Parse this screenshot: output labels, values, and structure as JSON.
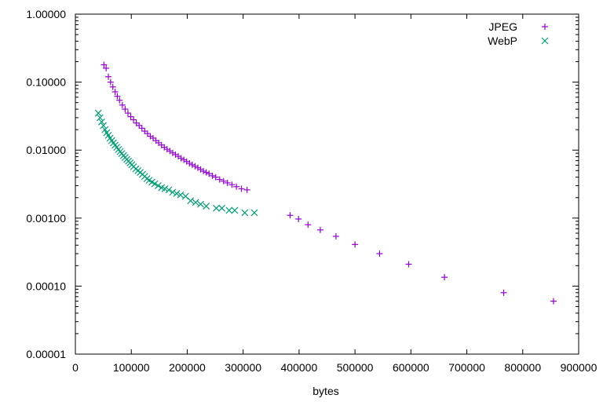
{
  "chart_data": {
    "type": "scatter",
    "title": "",
    "xlabel": "bytes",
    "ylabel": "",
    "xlim": [
      0,
      900000
    ],
    "ylim": [
      1e-05,
      1
    ],
    "yscale": "log",
    "xticks": [
      "0",
      "100000",
      "200000",
      "300000",
      "400000",
      "500000",
      "600000",
      "700000",
      "800000",
      "900000"
    ],
    "yticks": [
      "0.00001",
      "0.00010",
      "0.00100",
      "0.01000",
      "0.10000",
      "1.00000"
    ],
    "grid": false,
    "legend_position": "top-right",
    "series": [
      {
        "name": "JPEG",
        "marker": "plus",
        "color": "#9400d3",
        "x": [
          51000,
          55000,
          59000,
          63000,
          67000,
          71000,
          75000,
          79000,
          84000,
          89000,
          94000,
          99000,
          104000,
          109000,
          114000,
          119000,
          124000,
          129000,
          134000,
          139000,
          144000,
          149000,
          154000,
          159000,
          164000,
          169000,
          174000,
          179000,
          184000,
          189000,
          194000,
          199000,
          204000,
          209000,
          214000,
          219000,
          224000,
          229000,
          234000,
          239000,
          245000,
          251000,
          258000,
          265000,
          272000,
          280000,
          288000,
          297000,
          307000,
          384000,
          399000,
          416000,
          438000,
          466000,
          500000,
          544000,
          596000,
          660000,
          766000,
          855000
        ],
        "y": [
          0.18,
          0.16,
          0.12,
          0.1,
          0.085,
          0.072,
          0.062,
          0.054,
          0.046,
          0.04,
          0.035,
          0.031,
          0.028,
          0.025,
          0.023,
          0.021,
          0.019,
          0.0175,
          0.016,
          0.015,
          0.0138,
          0.0128,
          0.0119,
          0.011,
          0.0103,
          0.0097,
          0.0091,
          0.0086,
          0.0081,
          0.0076,
          0.0072,
          0.0068,
          0.0064,
          0.0061,
          0.0058,
          0.0055,
          0.0052,
          0.0049,
          0.0047,
          0.0045,
          0.0042,
          0.004,
          0.0037,
          0.0035,
          0.0033,
          0.0031,
          0.0029,
          0.0027,
          0.0026,
          0.0011,
          0.00097,
          0.0008,
          0.00067,
          0.00054,
          0.00041,
          0.0003,
          0.00021,
          0.000135,
          8e-05,
          6e-05
        ]
      },
      {
        "name": "WebP",
        "marker": "x",
        "color": "#009e73",
        "x": [
          41000,
          44000,
          47000,
          50000,
          53000,
          56000,
          59000,
          62000,
          65000,
          68000,
          71000,
          74000,
          77000,
          80000,
          83000,
          86000,
          89000,
          92000,
          95000,
          98000,
          101000,
          104000,
          108000,
          112000,
          116000,
          120000,
          124000,
          128000,
          132000,
          137000,
          142000,
          148000,
          154000,
          160000,
          167000,
          174000,
          181000,
          188000,
          197000,
          206000,
          215000,
          224000,
          234000,
          252000,
          262000,
          275000,
          285000,
          303000,
          320000
        ],
        "y": [
          0.035,
          0.03,
          0.026,
          0.023,
          0.02,
          0.018,
          0.0165,
          0.015,
          0.0138,
          0.0128,
          0.0118,
          0.011,
          0.0102,
          0.0095,
          0.0089,
          0.0083,
          0.0078,
          0.0073,
          0.0069,
          0.0065,
          0.0061,
          0.0057,
          0.0053,
          0.005,
          0.0047,
          0.0044,
          0.0041,
          0.0038,
          0.0036,
          0.0034,
          0.0032,
          0.003,
          0.0028,
          0.0027,
          0.0026,
          0.0024,
          0.0023,
          0.0022,
          0.0021,
          0.0018,
          0.0017,
          0.0016,
          0.0015,
          0.0014,
          0.0014,
          0.0013,
          0.0013,
          0.0012,
          0.0012
        ]
      }
    ]
  }
}
